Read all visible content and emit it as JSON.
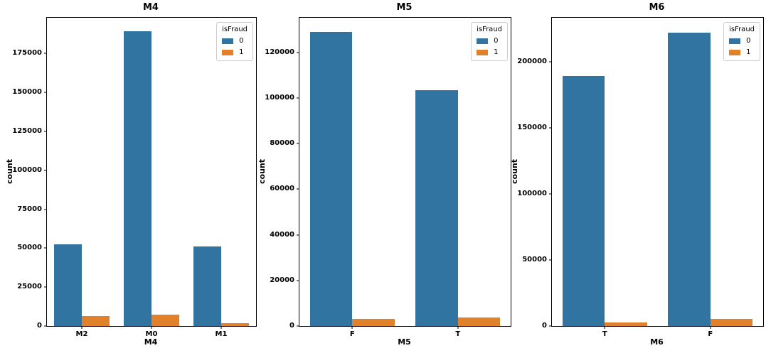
{
  "figure": {
    "background": "#ffffff",
    "text_color": "#000000",
    "spine_color": "#000000"
  },
  "palette": {
    "isFraud0_blue": "#3274a1",
    "isFraud1_orange": "#e1812c",
    "legend_border": "#cccccc"
  },
  "legend": {
    "title": "isFraud",
    "entries": [
      {
        "label": "0",
        "color": "#3274a1"
      },
      {
        "label": "1",
        "color": "#e1812c"
      }
    ],
    "position": "upper right"
  },
  "chart_data": [
    {
      "type": "bar",
      "title": "M4",
      "xlabel": "M4",
      "ylabel": "count",
      "categories": [
        "M2",
        "M0",
        "M1"
      ],
      "series": [
        {
          "name": "0",
          "color": "#3274a1",
          "values": [
            52600,
            189500,
            51100
          ]
        },
        {
          "name": "1",
          "color": "#e1812c",
          "values": [
            6500,
            7200,
            1700
          ]
        }
      ],
      "yticks": [
        0,
        25000,
        50000,
        75000,
        100000,
        125000,
        150000,
        175000
      ],
      "ylim": [
        0,
        198000
      ],
      "grid": false,
      "legend_position": "upper right"
    },
    {
      "type": "bar",
      "title": "M5",
      "xlabel": "M5",
      "ylabel": "count",
      "categories": [
        "F",
        "T"
      ],
      "series": [
        {
          "name": "0",
          "color": "#3274a1",
          "values": [
            129000,
            103500
          ]
        },
        {
          "name": "1",
          "color": "#e1812c",
          "values": [
            3200,
            3800
          ]
        }
      ],
      "yticks": [
        0,
        20000,
        40000,
        60000,
        80000,
        100000,
        120000
      ],
      "ylim": [
        0,
        135200
      ],
      "grid": false,
      "legend_position": "upper right"
    },
    {
      "type": "bar",
      "title": "M6",
      "xlabel": "M6",
      "ylabel": "count",
      "categories": [
        "T",
        "F"
      ],
      "series": [
        {
          "name": "0",
          "color": "#3274a1",
          "values": [
            189000,
            222000
          ]
        },
        {
          "name": "1",
          "color": "#e1812c",
          "values": [
            2900,
            5200
          ]
        }
      ],
      "yticks": [
        0,
        50000,
        100000,
        150000,
        200000
      ],
      "ylim": [
        0,
        233300
      ],
      "grid": false,
      "legend_position": "upper right"
    }
  ]
}
